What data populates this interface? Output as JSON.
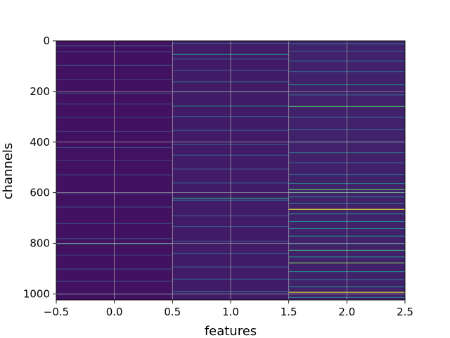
{
  "chart_data": {
    "type": "heatmap",
    "title": "",
    "xlabel": "features",
    "ylabel": "channels",
    "xlim": [
      -0.5,
      2.5
    ],
    "ylim": [
      1024,
      0
    ],
    "x_ticks": [
      -0.5,
      0.0,
      0.5,
      1.0,
      1.5,
      2.0,
      2.5
    ],
    "x_tick_labels": [
      "−0.5",
      "0.0",
      "0.5",
      "1.0",
      "1.5",
      "2.0",
      "2.5"
    ],
    "y_ticks": [
      0,
      200,
      400,
      600,
      800,
      1000
    ],
    "y_tick_labels": [
      "0",
      "200",
      "400",
      "600",
      "800",
      "1000"
    ],
    "grid": true,
    "colormap": "viridis",
    "n_channels": 1024,
    "columns": [
      {
        "feature": 0,
        "background": 0.05,
        "stripes": [
          [
            18,
            0.25
          ],
          [
            42,
            0.2
          ],
          [
            95,
            0.3
          ],
          [
            150,
            0.18
          ],
          [
            205,
            0.22
          ],
          [
            248,
            0.2
          ],
          [
            300,
            0.18
          ],
          [
            356,
            0.2
          ],
          [
            420,
            0.2
          ],
          [
            470,
            0.18
          ],
          [
            528,
            0.22
          ],
          [
            602,
            0.2
          ],
          [
            655,
            0.22
          ],
          [
            720,
            0.2
          ],
          [
            780,
            0.25
          ],
          [
            800,
            0.45
          ],
          [
            845,
            0.2
          ],
          [
            900,
            0.22
          ],
          [
            948,
            0.2
          ],
          [
            1000,
            0.18
          ]
        ]
      },
      {
        "feature": 1,
        "background": 0.08,
        "stripes": [
          [
            8,
            0.3
          ],
          [
            52,
            0.45
          ],
          [
            70,
            0.25
          ],
          [
            115,
            0.25
          ],
          [
            160,
            0.35
          ],
          [
            198,
            0.3
          ],
          [
            256,
            0.45
          ],
          [
            298,
            0.25
          ],
          [
            352,
            0.28
          ],
          [
            408,
            0.25
          ],
          [
            450,
            0.3
          ],
          [
            505,
            0.25
          ],
          [
            560,
            0.28
          ],
          [
            620,
            0.55
          ],
          [
            628,
            0.35
          ],
          [
            690,
            0.25
          ],
          [
            732,
            0.28
          ],
          [
            790,
            0.3
          ],
          [
            838,
            0.35
          ],
          [
            892,
            0.28
          ],
          [
            940,
            0.3
          ],
          [
            990,
            0.4
          ]
        ]
      },
      {
        "feature": 2,
        "background": 0.1,
        "stripes": [
          [
            10,
            0.35
          ],
          [
            40,
            0.3
          ],
          [
            78,
            0.35
          ],
          [
            120,
            0.3
          ],
          [
            172,
            0.5
          ],
          [
            212,
            0.35
          ],
          [
            258,
            0.7
          ],
          [
            300,
            0.3
          ],
          [
            348,
            0.35
          ],
          [
            398,
            0.3
          ],
          [
            440,
            0.35
          ],
          [
            480,
            0.3
          ],
          [
            526,
            0.35
          ],
          [
            562,
            0.4
          ],
          [
            586,
            0.75
          ],
          [
            598,
            0.6
          ],
          [
            615,
            0.4
          ],
          [
            640,
            0.4
          ],
          [
            664,
            0.95
          ],
          [
            682,
            0.4
          ],
          [
            712,
            0.45
          ],
          [
            740,
            0.4
          ],
          [
            770,
            0.5
          ],
          [
            800,
            0.4
          ],
          [
            826,
            0.65
          ],
          [
            852,
            0.45
          ],
          [
            876,
            0.8
          ],
          [
            910,
            0.45
          ],
          [
            942,
            0.4
          ],
          [
            970,
            0.45
          ],
          [
            992,
            0.95
          ],
          [
            1012,
            0.4
          ]
        ]
      }
    ]
  }
}
